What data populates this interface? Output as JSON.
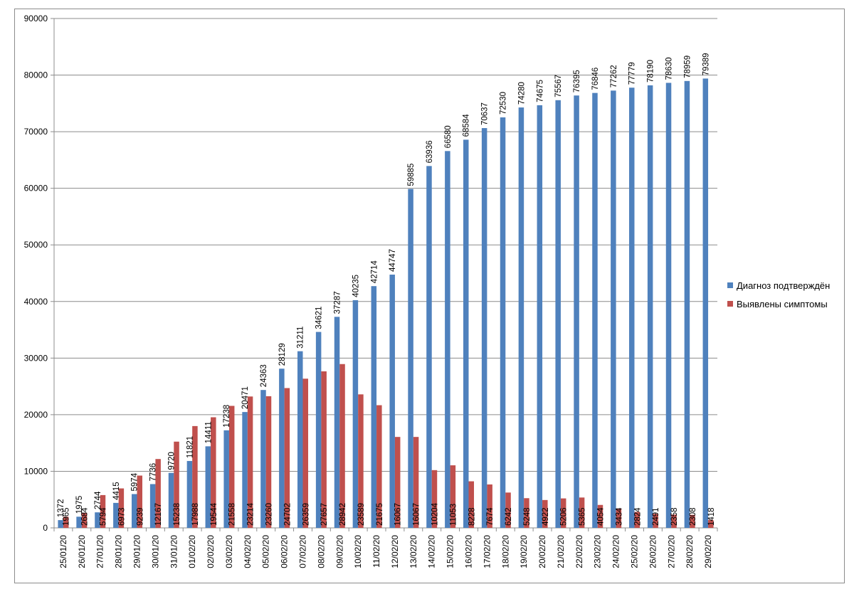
{
  "chart_data": {
    "type": "bar",
    "title": "",
    "xlabel": "",
    "ylabel": "",
    "ylim": [
      0,
      90000
    ],
    "yticks": [
      0,
      10000,
      20000,
      30000,
      40000,
      50000,
      60000,
      70000,
      80000,
      90000
    ],
    "grid": true,
    "legend_position": "right",
    "categories": [
      "25/01/20",
      "26/01/20",
      "27/01/20",
      "28/01/20",
      "29/01/20",
      "30/01/20",
      "31/01/20",
      "01/02/20",
      "02/02/20",
      "03/02/20",
      "04/02/20",
      "05/02/20",
      "06/02/20",
      "07/02/20",
      "08/02/20",
      "09/02/20",
      "10/02/20",
      "11/02/20",
      "12/02/20",
      "13/02/20",
      "14/02/20",
      "15/02/20",
      "16/02/20",
      "17/02/20",
      "18/02/20",
      "19/02/20",
      "20/02/20",
      "21/02/20",
      "22/02/20",
      "23/02/20",
      "24/02/20",
      "25/02/20",
      "26/02/20",
      "27/02/20",
      "28/02/20",
      "29/02/20"
    ],
    "series": [
      {
        "name": "Диагноз подтверждён",
        "color": "#4f81bd",
        "values": [
          1372,
          1975,
          2744,
          4415,
          5974,
          7736,
          9720,
          11821,
          14411,
          17238,
          20471,
          24363,
          28129,
          31211,
          34621,
          37287,
          40235,
          42714,
          44747,
          59885,
          63936,
          66580,
          68584,
          70637,
          72530,
          74280,
          74675,
          75567,
          76395,
          76846,
          77262,
          77779,
          78190,
          78630,
          78959,
          79389
        ]
      },
      {
        "name": "Выявлены симптомы",
        "color": "#c0504d",
        "values": [
          1965,
          2684,
          5794,
          6973,
          9239,
          12167,
          15238,
          17988,
          19544,
          21558,
          23214,
          23260,
          24702,
          26359,
          27657,
          28942,
          23589,
          21675,
          16067,
          16067,
          10204,
          11053,
          8228,
          7674,
          6242,
          5248,
          4922,
          5206,
          5365,
          4054,
          3434,
          2824,
          2491,
          2358,
          2308,
          1418
        ]
      }
    ]
  }
}
